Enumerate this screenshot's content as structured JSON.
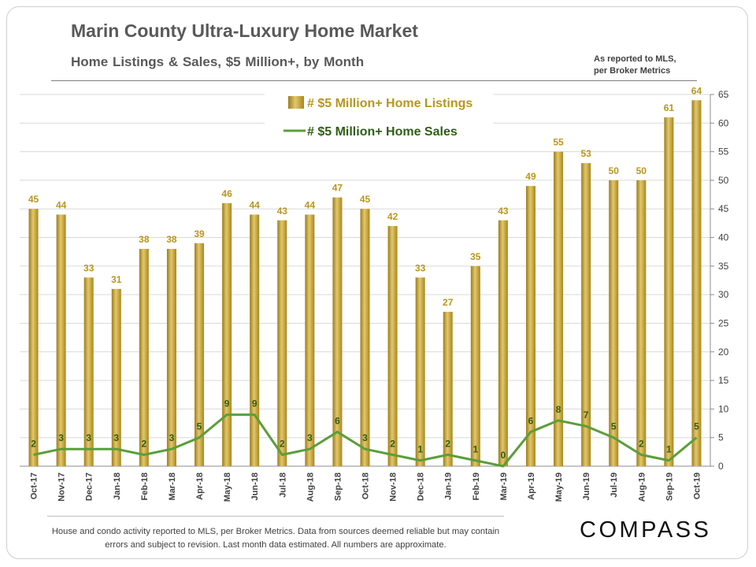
{
  "header": {
    "title": "Marin County Ultra-Luxury Home Market",
    "subtitle": "Home Listings & Sales, $5 Million+,  by Month",
    "note_line1": "As reported to MLS,",
    "note_line2": "per Broker Metrics"
  },
  "footer": {
    "text": "House and condo activity reported to MLS, per Broker Metrics. Data from sources deemed reliable but may contain errors and subject to revision. Last month data estimated. All numbers are approximate."
  },
  "brand": {
    "logo_text": "COMPASS"
  },
  "colors": {
    "bar": "#b8962e",
    "bar_label": "#b8961e",
    "line": "#5b9e3a",
    "line_label": "#2f5e16",
    "axis_text": "#404040",
    "gridline": "#d9d9d9"
  },
  "chart_data": {
    "type": "bar",
    "categories": [
      "Oct-17",
      "Nov-17",
      "Dec-17",
      "Jan-18",
      "Feb-18",
      "Mar-18",
      "Apr-18",
      "May-18",
      "Jun-18",
      "Jul-18",
      "Aug-18",
      "Sep-18",
      "Oct-18",
      "Nov-18",
      "Dec-18",
      "Jan-19",
      "Feb-19",
      "Mar-19",
      "Apr-19",
      "May-19",
      "Jun-19",
      "Jul-19",
      "Aug-19",
      "Sep-19",
      "Oct-19"
    ],
    "series": [
      {
        "name": "# $5 Million+ Home Listings",
        "type": "bar",
        "values": [
          45,
          44,
          33,
          31,
          38,
          38,
          39,
          46,
          44,
          43,
          44,
          47,
          45,
          42,
          33,
          27,
          35,
          43,
          49,
          55,
          53,
          50,
          50,
          61,
          64
        ]
      },
      {
        "name": "# $5 Million+ Home Sales",
        "type": "line",
        "values": [
          2,
          3,
          3,
          3,
          2,
          3,
          5,
          9,
          9,
          2,
          3,
          6,
          3,
          2,
          1,
          2,
          1,
          0,
          6,
          8,
          7,
          5,
          2,
          1,
          5
        ]
      }
    ],
    "y_axis": {
      "position": "right",
      "ylim": [
        0,
        65
      ],
      "ticks": [
        0,
        5,
        10,
        15,
        20,
        25,
        30,
        35,
        40,
        45,
        50,
        55,
        60,
        65
      ]
    },
    "grid": true,
    "legend": "top-center"
  }
}
